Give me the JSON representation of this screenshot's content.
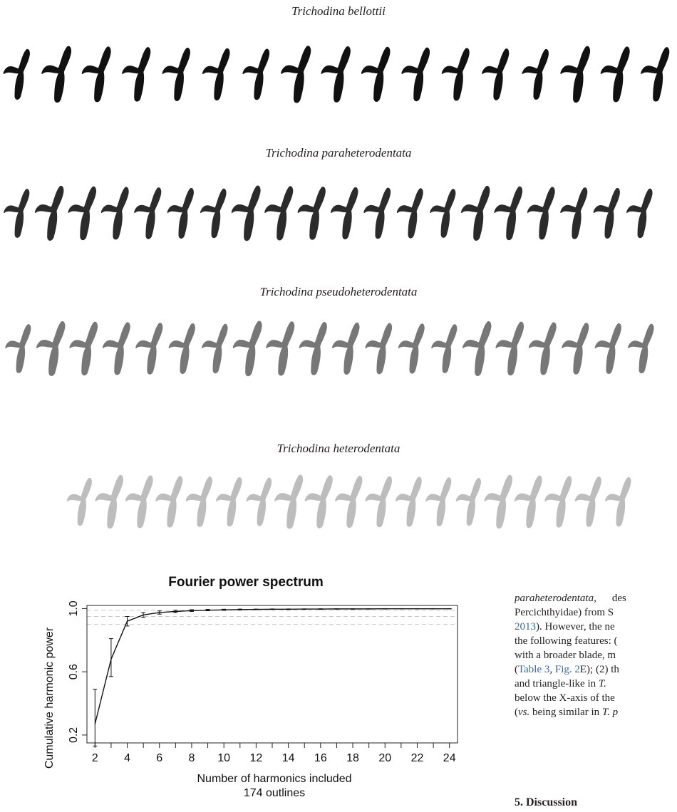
{
  "species_rows": [
    {
      "name": "Trichodina bellottii",
      "color": "#111111"
    },
    {
      "name": "Trichodina paraheterodentata",
      "color": "#2b2b2b"
    },
    {
      "name": "Trichodina pseudoheterodentata",
      "color": "#777777"
    },
    {
      "name": "Trichodina heterodentata",
      "color": "#bdbdbd"
    }
  ],
  "chart_data": {
    "type": "line",
    "title": "Fourier power spectrum",
    "xlabel": "Number of harmonics included",
    "subtitle": "174 outlines",
    "ylabel": "Cumulative harmonic power",
    "x_ticks": [
      "2",
      "4",
      "6",
      "8",
      "10",
      "12",
      "14",
      "16",
      "18",
      "20",
      "22",
      "24"
    ],
    "y_ticks": [
      "0.2",
      "0.6",
      "1.0"
    ],
    "xlim": [
      1.5,
      24.5
    ],
    "ylim": [
      0.15,
      1.02
    ],
    "reference_lines": [
      0.9,
      0.95,
      0.99
    ],
    "series": [
      {
        "x": [
          2,
          3,
          4,
          5,
          6,
          7,
          8,
          9,
          10,
          11,
          12,
          13,
          14,
          15,
          16,
          17,
          18,
          19,
          20,
          21,
          22,
          23,
          24
        ],
        "y": [
          0.27,
          0.68,
          0.92,
          0.96,
          0.975,
          0.982,
          0.987,
          0.99,
          0.992,
          0.994,
          0.995,
          0.996,
          0.996,
          0.997,
          0.997,
          0.998,
          0.998,
          0.998,
          0.999,
          0.999,
          0.999,
          0.999,
          0.999
        ],
        "err_low": [
          0.13,
          0.57,
          0.89,
          0.945,
          0.965,
          0.975,
          0.982,
          0.986,
          0.989,
          0.991,
          0.993,
          0.994,
          0.994,
          0.995,
          0.995,
          0.996,
          0.996,
          0.997,
          0.997,
          0.998,
          0.998,
          0.998,
          0.998
        ],
        "err_high": [
          0.49,
          0.81,
          0.95,
          0.975,
          0.985,
          0.99,
          0.993,
          0.995,
          0.996,
          0.997,
          0.997,
          0.998,
          0.998,
          0.998,
          0.999,
          0.999,
          0.999,
          0.999,
          1.0,
          1.0,
          1.0,
          1.0,
          1.0
        ]
      }
    ]
  },
  "paper": {
    "line1_a": "paraheterodentata,",
    "line1_b": "des",
    "line2": "Percichthyidae) from S",
    "line3_link": "2013",
    "line3_rest": "). However, the ne",
    "line4": "the following features: (",
    "line5": "with a broader blade, m",
    "line6_pre": "(",
    "line6_link1": "Table 3",
    "line6_sep": ", ",
    "line6_link2": "Fig. 2",
    "line6_rest": "E); (2) th",
    "line7_pre": "and triangle-like in ",
    "line7_italic": "T.",
    "line8": "below the X-axis of the",
    "line9_pre": "(",
    "line9_italic": "vs.",
    "line9_mid": " being similar in ",
    "line9_italic2": "T. p",
    "heading": "5. Discussion"
  }
}
